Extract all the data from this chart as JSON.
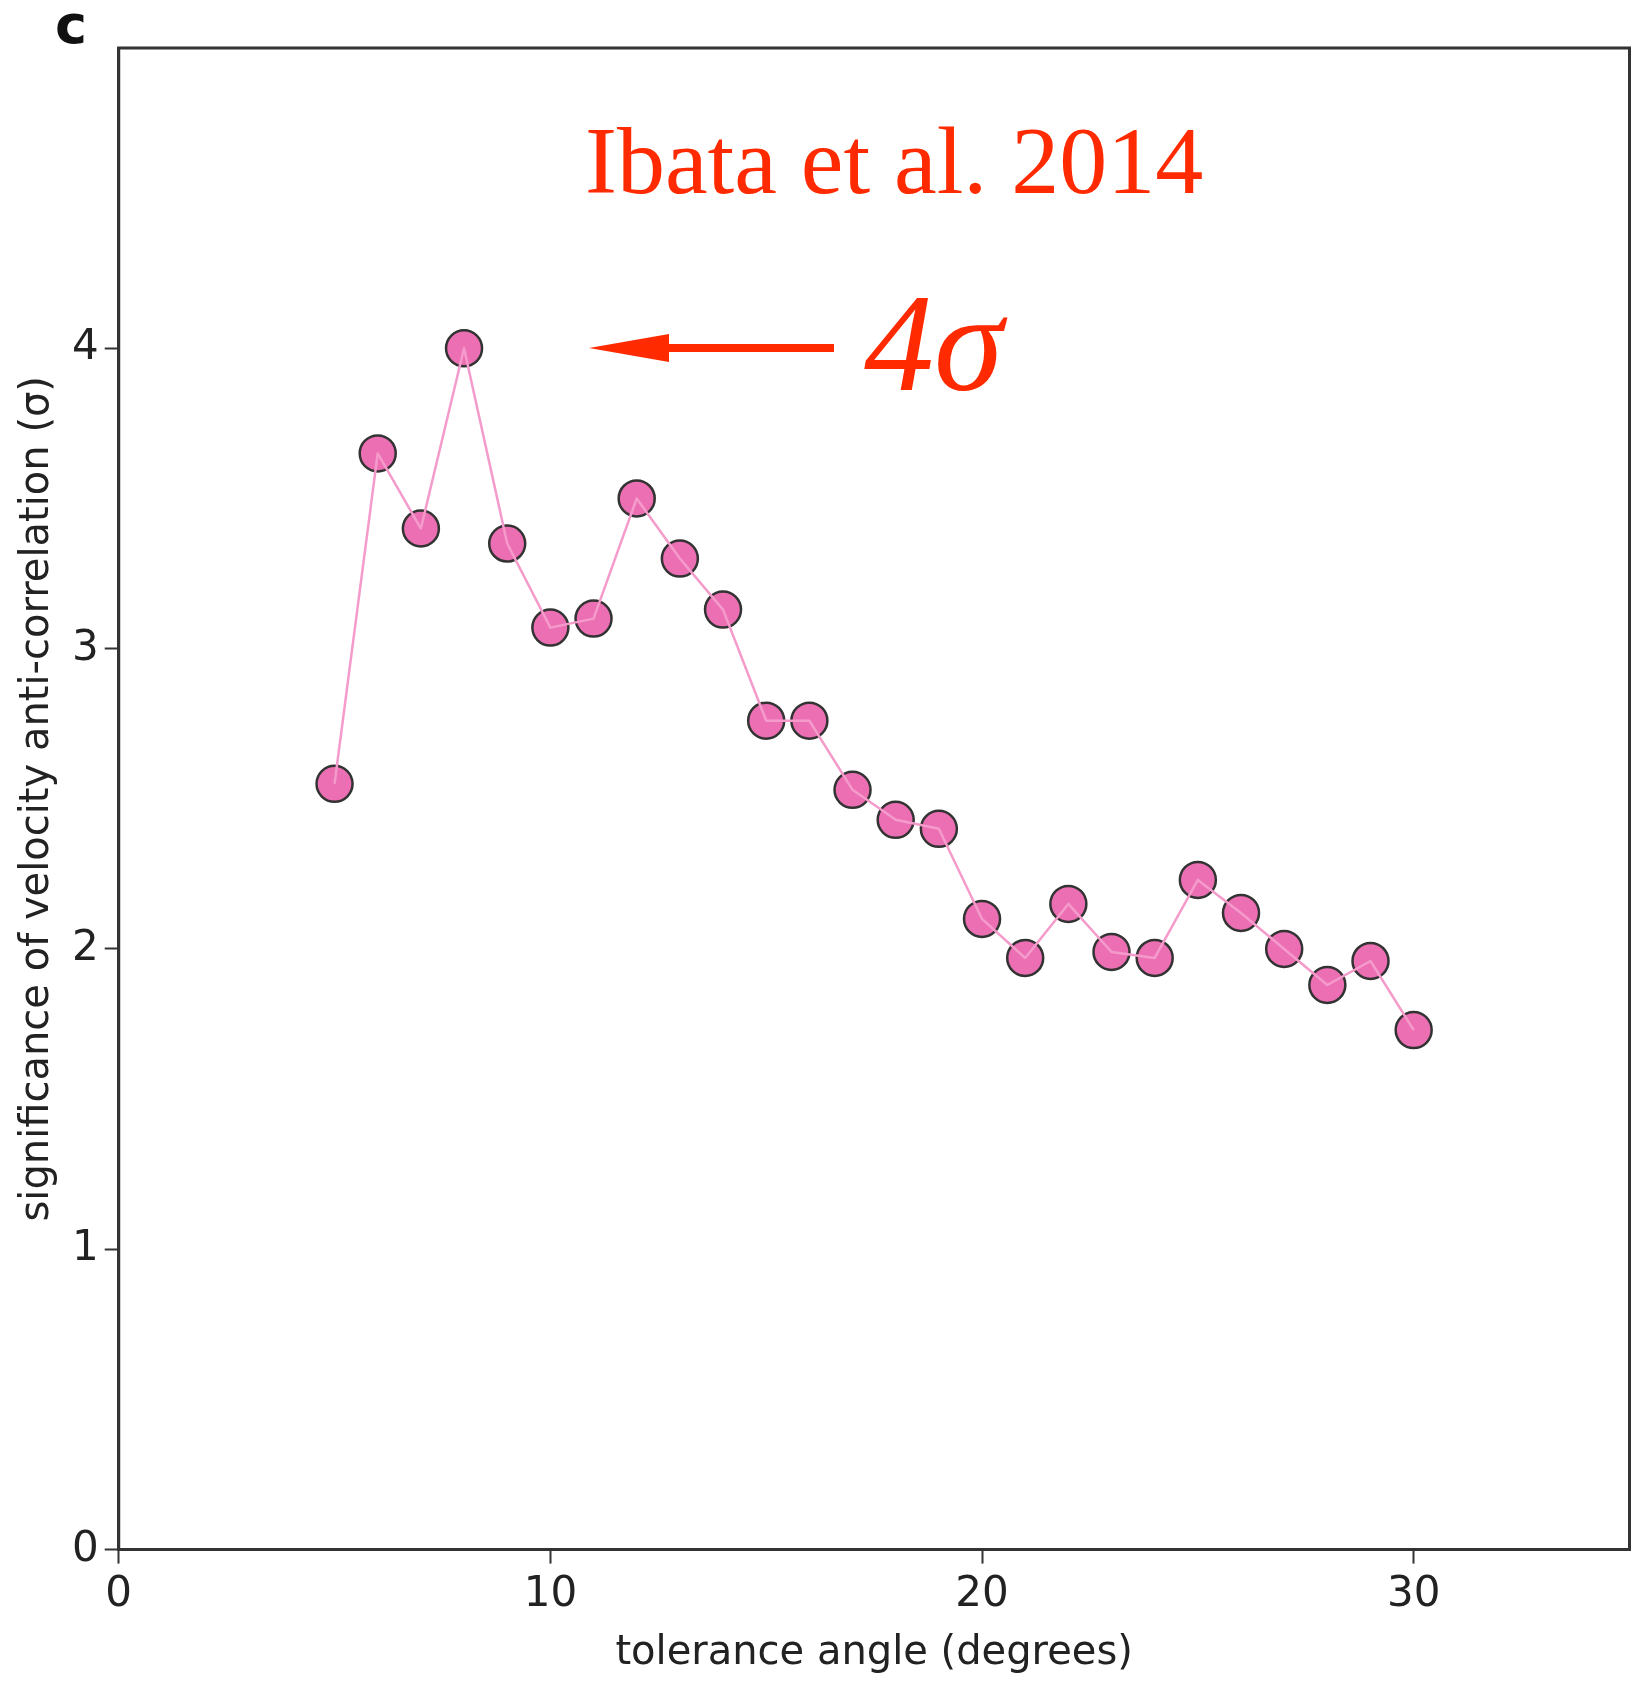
{
  "chart_data": {
    "type": "line",
    "xlabel": "tolerance angle (degrees)",
    "ylabel": "significance of velocity anti-correlation (σ)",
    "x": [
      5,
      6,
      7,
      8,
      9,
      10,
      11,
      12,
      13,
      14,
      15,
      16,
      17,
      18,
      19,
      20,
      21,
      22,
      23,
      24,
      25,
      26,
      27,
      28,
      29,
      30
    ],
    "series": [
      {
        "color": "#f59bcb",
        "colors": [
          "#ec6fb4",
          "#ec6fb4",
          "#ec6fb4",
          "#ec6fb4",
          "#ec6fb4",
          "#ec6fb4",
          "#ec6fb4",
          "#ec6fb4",
          "#ec6fb4",
          "#ec6fb4",
          "#ec6fb4",
          "#ec6fb4",
          "#ec6fb4",
          "#ec6fb4",
          "#ec6fb4",
          "#ec6fb4",
          "#ec6fb4",
          "#ec6fb4",
          "#ec6fb4",
          "#ec6fb4",
          "#ec6fb4",
          "#ec6fb4",
          "#ec6fb4",
          "#ec6fb4",
          "#ec6fb4",
          "#ec6fb4"
        ],
        "values": [
          2.55,
          3.65,
          3.4,
          4.0,
          3.35,
          3.07,
          3.1,
          3.5,
          3.3,
          3.13,
          2.76,
          2.76,
          2.53,
          2.43,
          2.4,
          2.1,
          1.97,
          2.15,
          1.99,
          1.97,
          2.23,
          2.12,
          2.0,
          1.88,
          1.96,
          1.73
        ]
      }
    ],
    "xlim": [
      0,
      35
    ],
    "xticks": [
      0,
      10,
      20,
      30
    ],
    "ylim": [
      0,
      5
    ],
    "yticks": [
      0,
      1,
      2,
      3,
      4
    ],
    "marker": "circle",
    "line_style": "solid",
    "grid": false,
    "legend": false,
    "annotations": [
      "c",
      "Ibata et al. 2014",
      {
        "text": "4σ",
        "x": 8,
        "y": 4
      }
    ]
  }
}
